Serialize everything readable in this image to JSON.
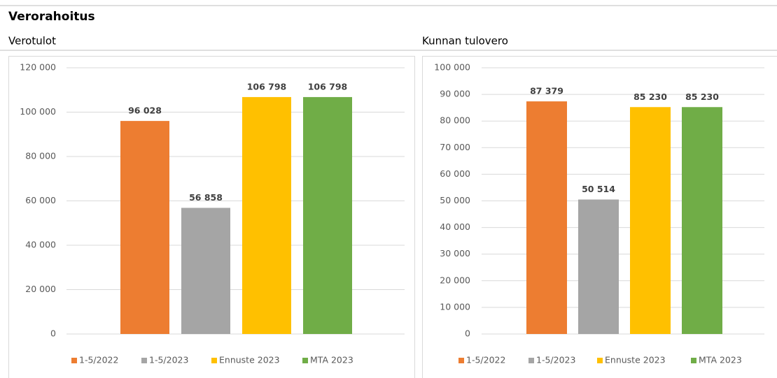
{
  "header": {
    "title": "Verorahoitus"
  },
  "chart_data": [
    {
      "type": "bar",
      "title": "Verotulot",
      "series": [
        {
          "name": "1-5/2022",
          "color": "#ed7d31",
          "values": [
            96028
          ],
          "value_labels": [
            "96 028"
          ]
        },
        {
          "name": "1-5/2023",
          "color": "#a5a5a5",
          "values": [
            56858
          ],
          "value_labels": [
            "56 858"
          ]
        },
        {
          "name": "Ennuste 2023",
          "color": "#ffc000",
          "values": [
            106798
          ],
          "value_labels": [
            "106 798"
          ]
        },
        {
          "name": "MTA 2023",
          "color": "#70ad47",
          "values": [
            106798
          ],
          "value_labels": [
            "106 798"
          ]
        }
      ],
      "ylim": [
        0,
        120000
      ],
      "yticks": [
        0,
        {
          "value": 20000,
          "label": "20 000"
        },
        {
          "value": 40000,
          "label": "40 000"
        },
        {
          "value": 60000,
          "label": "60 000"
        },
        {
          "value": 80000,
          "label": "80 000"
        },
        {
          "value": 100000,
          "label": "100 000"
        },
        {
          "value": 120000,
          "label": "120 000"
        }
      ],
      "grid": true,
      "legend": "bottom"
    },
    {
      "type": "bar",
      "title": "Kunnan tulovero",
      "series": [
        {
          "name": "1-5/2022",
          "color": "#ed7d31",
          "values": [
            87379
          ],
          "value_labels": [
            "87 379"
          ]
        },
        {
          "name": "1-5/2023",
          "color": "#a5a5a5",
          "values": [
            50514
          ],
          "value_labels": [
            "50 514"
          ]
        },
        {
          "name": "Ennuste 2023",
          "color": "#ffc000",
          "values": [
            85230
          ],
          "value_labels": [
            "85 230"
          ]
        },
        {
          "name": "MTA 2023",
          "color": "#70ad47",
          "values": [
            85230
          ],
          "value_labels": [
            "85 230"
          ]
        }
      ],
      "ylim": [
        0,
        100000
      ],
      "yticks": [
        0,
        {
          "value": 10000,
          "label": "10 000"
        },
        {
          "value": 20000,
          "label": "20 000"
        },
        {
          "value": 30000,
          "label": "30 000"
        },
        {
          "value": 40000,
          "label": "40 000"
        },
        {
          "value": 50000,
          "label": "50 000"
        },
        {
          "value": 60000,
          "label": "60 000"
        },
        {
          "value": 70000,
          "label": "70 000"
        },
        {
          "value": 80000,
          "label": "80 000"
        },
        {
          "value": 90000,
          "label": "90 000"
        },
        {
          "value": 100000,
          "label": "100 000"
        }
      ],
      "grid": true,
      "legend": "bottom"
    }
  ]
}
